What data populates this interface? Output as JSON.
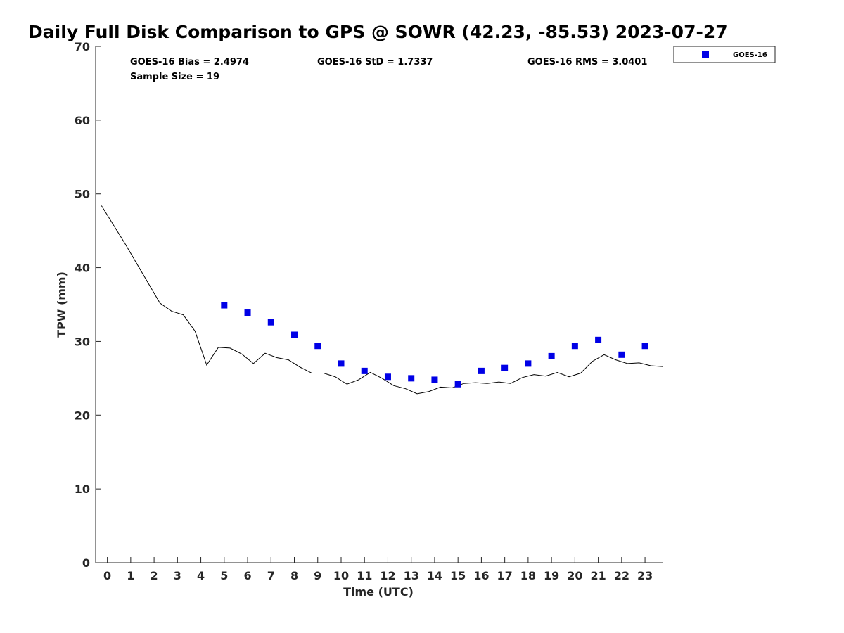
{
  "chart_data": {
    "type": "scatter",
    "title": "Daily Full Disk Comparison to GPS @ SOWR (42.23, -85.53) 2023-07-27",
    "xlabel": "Time (UTC)",
    "ylabel": "TPW (mm)",
    "xlim": [
      -0.5,
      23.75
    ],
    "ylim": [
      0,
      70
    ],
    "x_ticks": [
      "0",
      "1",
      "2",
      "3",
      "4",
      "5",
      "6",
      "7",
      "8",
      "9",
      "10",
      "11",
      "12",
      "13",
      "14",
      "15",
      "16",
      "17",
      "18",
      "19",
      "20",
      "21",
      "22",
      "23"
    ],
    "y_ticks": [
      "0",
      "10",
      "20",
      "30",
      "40",
      "50",
      "60",
      "70"
    ],
    "grid": false,
    "legend_position": "top-right (outside plot)",
    "stats": {
      "bias": "GOES-16 Bias = 2.4974",
      "std": "GOES-16 StD = 1.7337",
      "rms": "GOES-16 RMS = 3.0401",
      "sample_size": "Sample Size = 19"
    },
    "series": [
      {
        "name": "GOES-16",
        "kind": "scatter",
        "marker": "square",
        "color": "#0000e6",
        "x": [
          5,
          6,
          7,
          8,
          9,
          10,
          11,
          12,
          13,
          14,
          15,
          16,
          17,
          18,
          19,
          20,
          21,
          22,
          23
        ],
        "y": [
          34.9,
          33.9,
          32.6,
          30.9,
          29.4,
          27.0,
          26.0,
          25.2,
          25.0,
          24.8,
          24.2,
          26.0,
          26.4,
          27.0,
          28.0,
          29.4,
          30.2,
          28.2,
          29.4
        ]
      },
      {
        "kind": "line",
        "color": "#000000",
        "x": [
          -0.25,
          0.75,
          1.75,
          2.25,
          2.75,
          3.25,
          3.75,
          4.25,
          4.75,
          5.25,
          5.75,
          6.25,
          6.75,
          7.25,
          7.75,
          8.25,
          8.75,
          9.25,
          9.75,
          10.25,
          10.75,
          11.25,
          11.75,
          12.25,
          12.75,
          13.25,
          13.75,
          14.25,
          14.75,
          15.25,
          15.75,
          16.25,
          16.75,
          17.25,
          17.75,
          18.25,
          18.75,
          19.25,
          19.75,
          20.25,
          20.75,
          21.25,
          21.75,
          22.25,
          22.75,
          23.25,
          23.75
        ],
        "y": [
          48.4,
          43.3,
          37.9,
          35.2,
          34.1,
          33.6,
          31.4,
          26.8,
          29.2,
          29.1,
          28.3,
          27.0,
          28.4,
          27.8,
          27.5,
          26.5,
          25.7,
          25.7,
          25.2,
          24.2,
          24.8,
          25.8,
          25.0,
          24.0,
          23.6,
          22.9,
          23.2,
          23.8,
          23.7,
          24.3,
          24.4,
          24.3,
          24.5,
          24.3,
          25.1,
          25.5,
          25.3,
          25.8,
          25.2,
          25.7,
          27.3,
          28.2,
          27.5,
          27.0,
          27.1,
          26.7,
          26.6
        ]
      }
    ]
  }
}
